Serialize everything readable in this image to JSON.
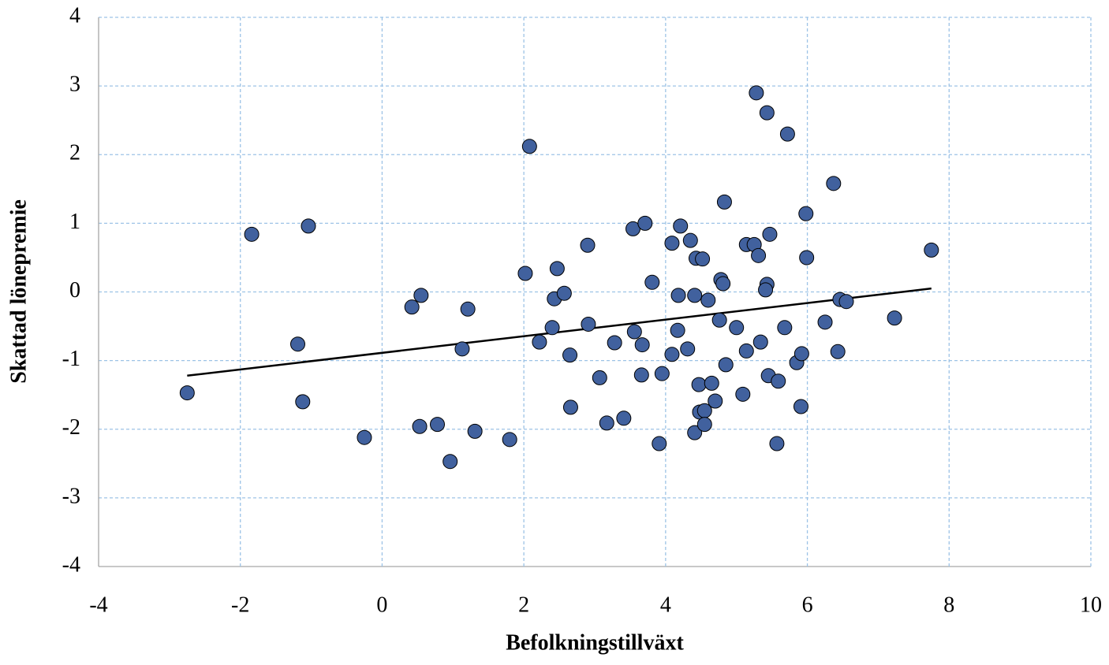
{
  "chart_data": {
    "type": "scatter",
    "x_label": "Befolkningstillväxt",
    "y_label": "Skattad lönepremie",
    "xlim": [
      -4,
      10
    ],
    "xticks": [
      -4,
      -2,
      0,
      2,
      4,
      6,
      8,
      10
    ],
    "ylim": [
      -4,
      4
    ],
    "yticks": [
      -4,
      -3,
      -2,
      -1,
      0,
      1,
      2,
      3,
      4
    ],
    "grid": true,
    "color": "#41619e",
    "x": [
      -2.75,
      -1.84,
      -1.04,
      -1.19,
      -1.12,
      -0.25,
      0.42,
      0.55,
      0.53,
      0.78,
      0.96,
      1.13,
      1.21,
      1.31,
      1.8,
      2.02,
      2.08,
      2.4,
      2.47,
      2.43,
      2.57,
      2.22,
      2.65,
      2.66,
      2.9,
      2.91,
      3.07,
      3.17,
      3.28,
      3.41,
      3.54,
      3.56,
      3.71,
      3.67,
      3.66,
      3.81,
      3.95,
      3.91,
      4.09,
      4.09,
      4.21,
      4.18,
      4.17,
      4.31,
      4.35,
      4.41,
      4.43,
      4.52,
      4.6,
      4.41,
      4.47,
      4.48,
      4.55,
      4.55,
      4.65,
      4.7,
      4.76,
      4.78,
      4.81,
      4.83,
      4.85,
      5.0,
      5.09,
      5.14,
      5.14,
      5.25,
      5.28,
      5.31,
      5.34,
      5.43,
      5.43,
      5.41,
      5.47,
      5.45,
      5.57,
      5.59,
      5.68,
      5.72,
      5.85,
      5.92,
      5.91,
      5.98,
      5.99,
      6.25,
      6.37,
      6.43,
      6.46,
      6.55,
      7.23,
      7.75
    ],
    "values": [
      -1.47,
      0.84,
      0.96,
      -0.76,
      -1.6,
      -2.12,
      -0.22,
      -0.05,
      -1.96,
      -1.93,
      -2.47,
      -0.83,
      -0.25,
      -2.03,
      -2.15,
      0.27,
      2.12,
      -0.52,
      0.34,
      -0.1,
      -0.02,
      -0.73,
      -0.92,
      -1.68,
      0.68,
      -0.47,
      -1.25,
      -1.91,
      -0.74,
      -1.84,
      0.92,
      -0.58,
      1.0,
      -0.77,
      -1.21,
      0.14,
      -1.19,
      -2.21,
      0.71,
      -0.91,
      0.96,
      -0.05,
      -0.56,
      -0.83,
      0.75,
      -0.05,
      0.49,
      0.48,
      -0.12,
      -2.05,
      -1.35,
      -1.75,
      -1.73,
      -1.93,
      -1.33,
      -1.59,
      -0.41,
      0.18,
      0.12,
      1.31,
      -1.06,
      -0.52,
      -1.49,
      0.69,
      -0.86,
      0.69,
      2.9,
      0.53,
      -0.73,
      2.61,
      0.11,
      0.03,
      0.84,
      -1.22,
      -2.21,
      -1.3,
      -0.52,
      2.3,
      -1.03,
      -0.9,
      -1.67,
      1.14,
      0.5,
      -0.44,
      1.58,
      -0.87,
      -0.11,
      -0.14,
      -0.38,
      0.61
    ],
    "trendline": {
      "x": [
        -2.75,
        7.75
      ],
      "y": [
        -1.22,
        0.05
      ]
    }
  }
}
